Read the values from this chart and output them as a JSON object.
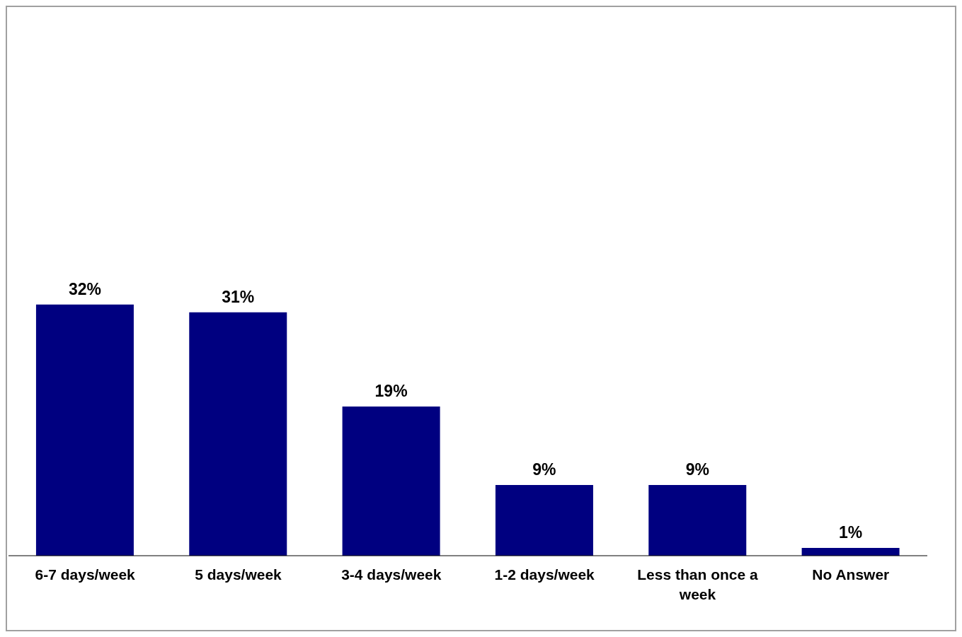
{
  "chart_data": {
    "type": "bar",
    "categories": [
      "6-7 days/week",
      "5 days/week",
      "3-4 days/week",
      "1-2 days/week",
      "Less than once a week",
      "No Answer"
    ],
    "values": [
      32,
      31,
      19,
      9,
      9,
      1
    ],
    "color": "#000080",
    "data_labels": true,
    "value_labels": [
      "32%",
      "31%",
      "19%",
      "9%",
      "9%",
      "1%"
    ],
    "grid": false,
    "legend": false
  }
}
